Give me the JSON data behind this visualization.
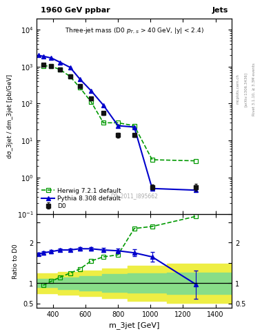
{
  "title_top": "1960 GeV ppbar",
  "title_right": "Jets",
  "plot_title": "Three-jet mass (D0 p$_{T,S}$ > 40 GeV, |y| < 2.4)",
  "xlabel": "m_3jet [GeV]",
  "ylabel_main": "dσ_3jet / dm_3jet [pb/GeV]",
  "ylabel_ratio": "Ratio to D0",
  "watermark": "D0_2011_I895662",
  "right_label": "Rivet 3.1.10, ≥ 3.3M events",
  "arxiv_label": "[arXiv:1306.3436]",
  "mcplots_label": "mcplots.cern.ch",
  "d0_x": [
    340,
    390,
    445,
    505,
    565,
    635,
    710,
    800,
    900,
    1010,
    1280
  ],
  "d0_y": [
    1100,
    1050,
    820,
    540,
    290,
    135,
    55,
    14,
    14,
    0.55,
    0.55
  ],
  "d0_yerr": [
    80,
    70,
    60,
    40,
    25,
    12,
    6,
    2,
    1.5,
    0.08,
    0.12
  ],
  "herwig_x": [
    340,
    390,
    445,
    505,
    565,
    635,
    710,
    800,
    900,
    1010,
    1280
  ],
  "herwig_y": [
    1050,
    1020,
    820,
    540,
    270,
    110,
    30,
    30,
    25,
    3.0,
    2.8
  ],
  "pythia_x": [
    310,
    340,
    390,
    445,
    505,
    565,
    635,
    710,
    800,
    900,
    1010,
    1280
  ],
  "pythia_y": [
    2000,
    1900,
    1700,
    1300,
    950,
    460,
    220,
    90,
    25,
    23,
    0.5,
    0.45
  ],
  "herwig_ratio_x": [
    340,
    390,
    445,
    505,
    565,
    635,
    710,
    800,
    900,
    1010,
    1280
  ],
  "herwig_ratio_y": [
    0.95,
    1.05,
    1.15,
    1.25,
    1.35,
    1.55,
    1.65,
    1.7,
    2.35,
    2.4,
    2.65
  ],
  "pythia_ratio_x": [
    310,
    340,
    390,
    445,
    505,
    565,
    635,
    710,
    800,
    900,
    1010,
    1280
  ],
  "pythia_ratio_y": [
    1.72,
    1.75,
    1.78,
    1.82,
    1.82,
    1.85,
    1.85,
    1.82,
    1.8,
    1.75,
    1.65,
    0.97
  ],
  "pythia_ratio_yerr": [
    0.04,
    0.04,
    0.04,
    0.04,
    0.04,
    0.04,
    0.04,
    0.05,
    0.06,
    0.08,
    0.12,
    0.35
  ],
  "band_x": [
    300,
    430,
    560,
    700,
    860,
    1100,
    1500
  ],
  "band_green_lo": [
    0.9,
    0.85,
    0.82,
    0.78,
    0.76,
    0.74,
    0.74
  ],
  "band_green_hi": [
    1.1,
    1.15,
    1.18,
    1.22,
    1.24,
    1.26,
    1.26
  ],
  "band_yellow_lo": [
    0.75,
    0.72,
    0.68,
    0.63,
    0.57,
    0.52,
    0.52
  ],
  "band_yellow_hi": [
    1.25,
    1.28,
    1.32,
    1.37,
    1.43,
    1.48,
    1.48
  ],
  "xlim": [
    300,
    1500
  ],
  "ylim_main": [
    0.1,
    20000
  ],
  "ylim_ratio": [
    0.4,
    2.7
  ],
  "color_d0": "#111111",
  "color_herwig": "#009900",
  "color_pythia": "#0000cc",
  "color_band_green": "#88dd88",
  "color_band_yellow": "#eeee44",
  "bg_color": "#ffffff"
}
